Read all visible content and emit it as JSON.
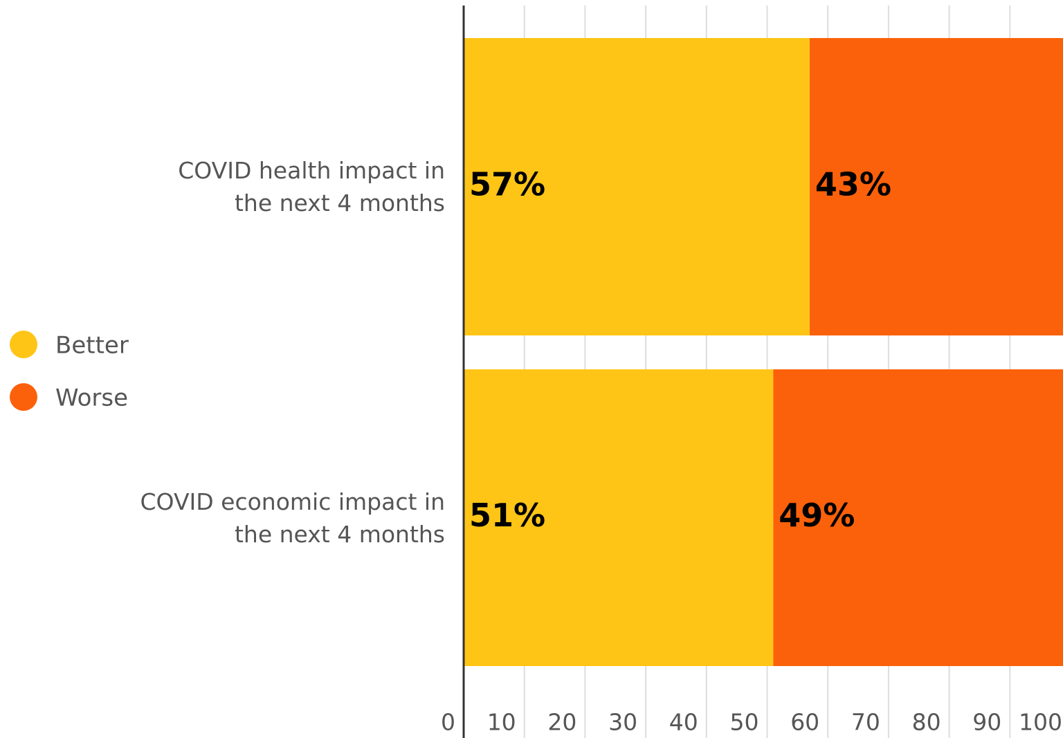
{
  "chart_data": {
    "type": "stacked_bar_horizontal",
    "categories": [
      "COVID health impact in the next 4 months",
      "COVID economic impact in the next 4 months"
    ],
    "series": [
      {
        "name": "Better",
        "color": "#fec516",
        "values": [
          57,
          51
        ],
        "value_labels": [
          "57%",
          "51%"
        ]
      },
      {
        "name": "Worse",
        "color": "#fb610a",
        "values": [
          43,
          49
        ],
        "value_labels": [
          "43%",
          "49%"
        ]
      }
    ],
    "xlim": [
      0,
      100
    ],
    "xticks": [
      0,
      10,
      20,
      30,
      40,
      50,
      60,
      70,
      80,
      90,
      100
    ],
    "grid": true,
    "legend": "left"
  }
}
